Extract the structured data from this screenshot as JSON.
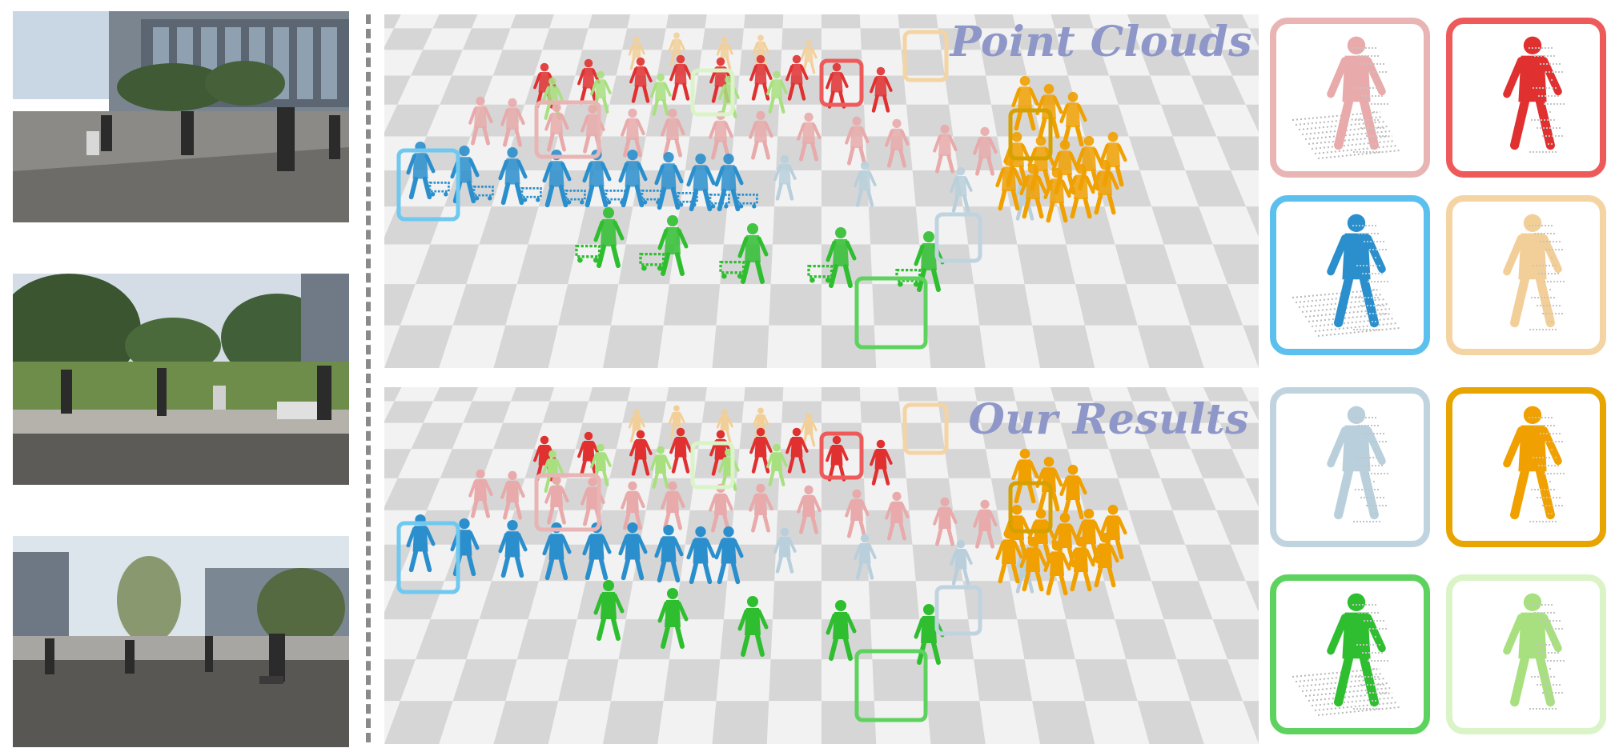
{
  "panels": {
    "top": {
      "title": "Point Clouds"
    },
    "bottom": {
      "title": "Our Results"
    }
  },
  "colors": {
    "pink": "#e8aaaa",
    "red": "#e03030",
    "blue": "#2a8fcc",
    "peach": "#f2cf98",
    "light_blue": "#b9d0dc",
    "orange": "#f0a000",
    "green": "#2fbe2f",
    "light_green": "#c8efaa",
    "lime": "#a8e080",
    "gray_point": "#b8b8b8",
    "checker_dark": "#d6d6d6",
    "checker_light": "#f2f2f2",
    "title": "#8e97c8",
    "divider": "#8a8a8a"
  },
  "photos": [
    {
      "name": "campus-building-walkway"
    },
    {
      "name": "campus-lawn-trees"
    },
    {
      "name": "campus-plaza-road"
    }
  ],
  "zoom_tiles": [
    {
      "name": "zoom-pink",
      "color_key": "pink"
    },
    {
      "name": "zoom-red",
      "color_key": "red"
    },
    {
      "name": "zoom-blue",
      "color_key": "blue"
    },
    {
      "name": "zoom-peach",
      "color_key": "peach"
    },
    {
      "name": "zoom-light-blue",
      "color_key": "light_blue"
    },
    {
      "name": "zoom-orange",
      "color_key": "orange"
    },
    {
      "name": "zoom-green",
      "color_key": "green"
    },
    {
      "name": "zoom-light-green",
      "color_key": "light_green"
    }
  ]
}
